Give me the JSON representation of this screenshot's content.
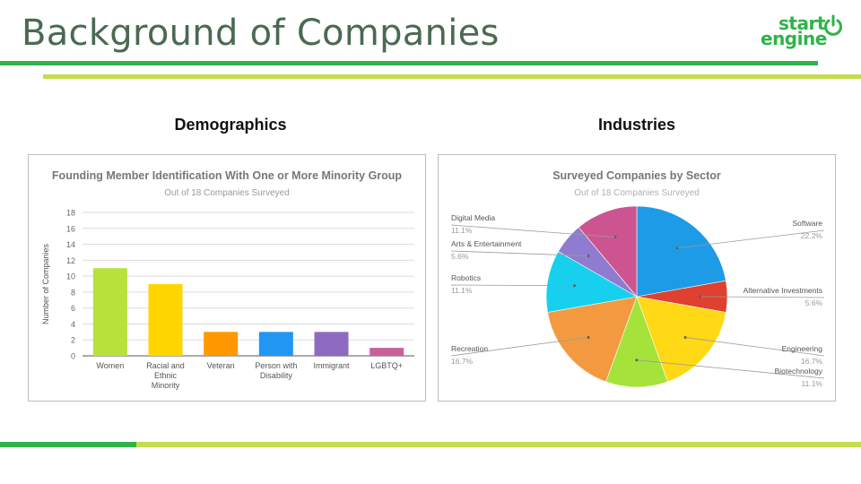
{
  "page": {
    "title": "Background of Companies",
    "logo": {
      "text_start": "start",
      "text_engine": "engine",
      "brand_color": "#2fb34a"
    },
    "accent_colors": {
      "green_dark": "#2fb34a",
      "green_light": "#c3dd4f",
      "title_color": "#4a6a52"
    }
  },
  "left_section": {
    "heading": "Demographics"
  },
  "right_section": {
    "heading": "Industries"
  },
  "chart_data": [
    {
      "type": "bar",
      "title": "Founding Member Identification With One or More Minority Group",
      "subtitle": "Out of 18 Companies Surveyed",
      "xlabel": "",
      "ylabel": "Number of Companies",
      "ylim": [
        0,
        18
      ],
      "yticks": [
        0,
        2,
        4,
        6,
        8,
        10,
        12,
        14,
        16,
        18
      ],
      "grid": true,
      "categories": [
        "Women",
        "Racial and Ethnic Minority",
        "Veteran",
        "Person with Disability",
        "Immigrant",
        "LGBTQ+"
      ],
      "category_lines": [
        [
          "Women"
        ],
        [
          "Racial and",
          "Ethnic",
          "Minority"
        ],
        [
          "Veteran"
        ],
        [
          "Person with",
          "Disability"
        ],
        [
          "Immigrant"
        ],
        [
          "LGBTQ+"
        ]
      ],
      "values": [
        11,
        9,
        3,
        3,
        3,
        1
      ],
      "colors": [
        "#b6e23a",
        "#ffd500",
        "#ff9800",
        "#2196f3",
        "#8e6bc1",
        "#c8619a"
      ]
    },
    {
      "type": "pie",
      "title": "Surveyed Companies by Sector",
      "subtitle": "Out of 18 Companies Surveyed",
      "slices": [
        {
          "label": "Software",
          "value": 22.2,
          "display": "22.2%",
          "color": "#1e9be6",
          "side": "right"
        },
        {
          "label": "Alternative Investments",
          "value": 5.6,
          "display": "5.6%",
          "color": "#e0402f",
          "side": "right"
        },
        {
          "label": "Engineering",
          "value": 16.7,
          "display": "16.7%",
          "color": "#ffd816",
          "side": "right"
        },
        {
          "label": "Biotechnology",
          "value": 11.1,
          "display": "11.1%",
          "color": "#a6e33a",
          "side": "right"
        },
        {
          "label": "Recreation",
          "value": 16.7,
          "display": "16.7%",
          "color": "#f39a40",
          "side": "left"
        },
        {
          "label": "Robotics",
          "value": 11.1,
          "display": "11.1%",
          "color": "#17d0ee",
          "side": "left"
        },
        {
          "label": "Arts & Entertainment",
          "value": 5.6,
          "display": "5.6%",
          "color": "#8f7bd0",
          "side": "left"
        },
        {
          "label": "Digital Media",
          "value": 11.1,
          "display": "11.1%",
          "color": "#cc5591",
          "side": "left"
        }
      ]
    }
  ]
}
